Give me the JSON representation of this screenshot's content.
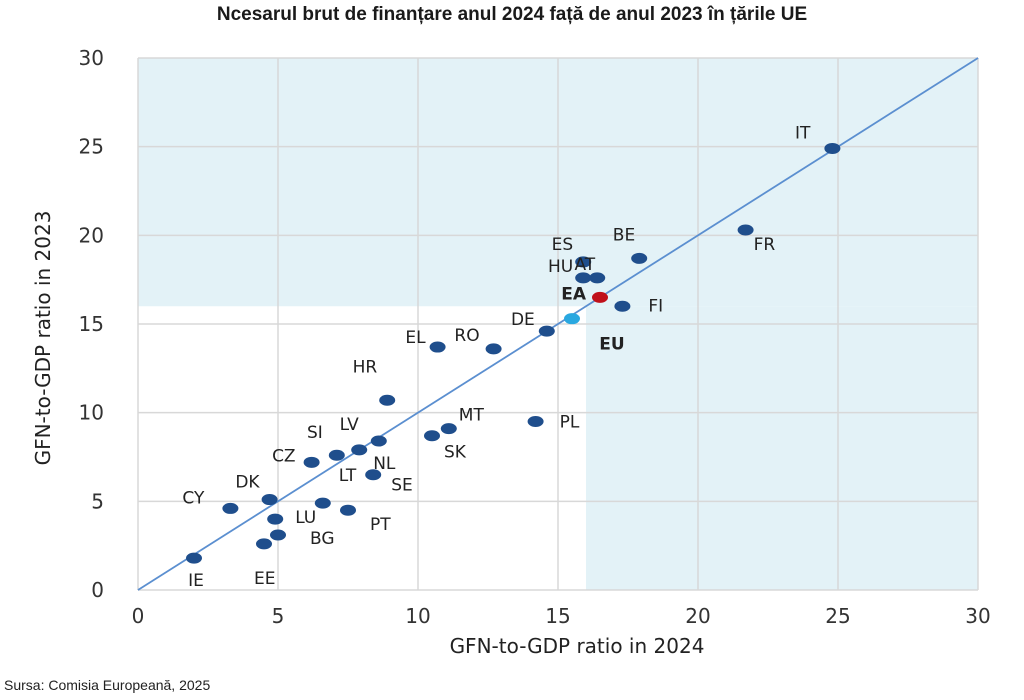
{
  "title": "Ncesarul brut de finanțare anul 2024 față de anul 2023 în țările UE",
  "source": "Sursa: Comisia Europeană, 2025",
  "colors": {
    "point": "#1f4e8c",
    "ea": "#c0101a",
    "eu": "#2aa8e0",
    "diagonal": "#5b8fd0",
    "shade": "#e3f2f7",
    "grid": "#d8d8d8"
  },
  "chart_data": {
    "type": "scatter",
    "xlabel": "GFN-to-GDP ratio in 2024",
    "ylabel": "GFN-to-GDP ratio in 2023",
    "xlim": [
      0,
      30
    ],
    "ylim": [
      0,
      30
    ],
    "xticks": [
      "0",
      "5",
      "10",
      "15",
      "20",
      "25",
      "30"
    ],
    "yticks": [
      "0",
      "5",
      "10",
      "15",
      "20",
      "25",
      "30"
    ],
    "grid": true,
    "reference_line": "y = x",
    "shaded_threshold": 16,
    "points": [
      {
        "label": "IT",
        "x": 24.8,
        "y": 24.9,
        "kind": "country"
      },
      {
        "label": "FR",
        "x": 21.7,
        "y": 20.3,
        "kind": "country"
      },
      {
        "label": "BE",
        "x": 17.9,
        "y": 18.7,
        "kind": "country"
      },
      {
        "label": "ES",
        "x": 15.9,
        "y": 18.5,
        "kind": "country"
      },
      {
        "label": "HU",
        "x": 15.9,
        "y": 17.6,
        "kind": "country"
      },
      {
        "label": "AT",
        "x": 16.4,
        "y": 17.6,
        "kind": "country"
      },
      {
        "label": "EA",
        "x": 16.5,
        "y": 16.5,
        "kind": "aggregate-ea"
      },
      {
        "label": "FI",
        "x": 17.3,
        "y": 16.0,
        "kind": "country"
      },
      {
        "label": "DE",
        "x": 14.6,
        "y": 14.6,
        "kind": "country"
      },
      {
        "label": "EU",
        "x": 15.5,
        "y": 15.3,
        "kind": "aggregate-eu"
      },
      {
        "label": "EL",
        "x": 10.7,
        "y": 13.7,
        "kind": "country"
      },
      {
        "label": "RO",
        "x": 12.7,
        "y": 13.6,
        "kind": "country"
      },
      {
        "label": "HR",
        "x": 8.9,
        "y": 10.7,
        "kind": "country"
      },
      {
        "label": "MT",
        "x": 11.1,
        "y": 9.1,
        "kind": "country"
      },
      {
        "label": "PL",
        "x": 14.2,
        "y": 9.5,
        "kind": "country"
      },
      {
        "label": "SK",
        "x": 10.5,
        "y": 8.7,
        "kind": "country"
      },
      {
        "label": "LV",
        "x": 8.6,
        "y": 8.4,
        "kind": "country"
      },
      {
        "label": "NL",
        "x": 7.9,
        "y": 7.9,
        "kind": "country"
      },
      {
        "label": "SI",
        "x": 7.1,
        "y": 7.6,
        "kind": "country"
      },
      {
        "label": "CZ",
        "x": 6.2,
        "y": 7.2,
        "kind": "country"
      },
      {
        "label": "SE",
        "x": 8.4,
        "y": 6.5,
        "kind": "country"
      },
      {
        "label": "DK",
        "x": 4.7,
        "y": 5.1,
        "kind": "country"
      },
      {
        "label": "LT",
        "x": 6.6,
        "y": 4.9,
        "kind": "country"
      },
      {
        "label": "CY",
        "x": 3.3,
        "y": 4.6,
        "kind": "country"
      },
      {
        "label": "PT",
        "x": 7.5,
        "y": 4.5,
        "kind": "country"
      },
      {
        "label": "LU",
        "x": 4.9,
        "y": 4.0,
        "kind": "country"
      },
      {
        "label": "BG",
        "x": 5.0,
        "y": 3.1,
        "kind": "country"
      },
      {
        "label": "EE",
        "x": 4.5,
        "y": 2.6,
        "kind": "country"
      },
      {
        "label": "IE",
        "x": 2.0,
        "y": 1.8,
        "kind": "country"
      }
    ]
  }
}
